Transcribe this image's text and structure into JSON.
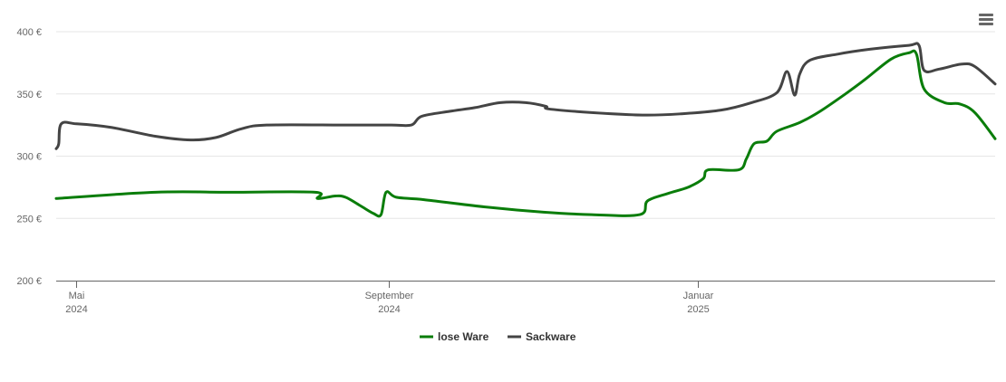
{
  "chart_data": {
    "type": "line",
    "title": "",
    "xlabel": "",
    "ylabel": "",
    "ylim": [
      200,
      400
    ],
    "y_ticks": [
      "200 €",
      "250 €",
      "300 €",
      "350 €",
      "400 €"
    ],
    "x_ticks": [
      {
        "date": "2024-05-01",
        "line1": "Mai",
        "line2": "2024"
      },
      {
        "date": "2024-09-01",
        "line1": "September",
        "line2": "2024"
      },
      {
        "date": "2025-01-01",
        "line1": "Januar",
        "line2": "2025"
      }
    ],
    "xlim": [
      "2024-04-23",
      "2025-04-28"
    ],
    "grid": true,
    "legend_position": "bottom-center",
    "series": [
      {
        "name": "lose Ware",
        "color": "#0a7d0a",
        "points": [
          [
            "2024-04-23",
            266
          ],
          [
            "2024-06-01",
            271
          ],
          [
            "2024-07-01",
            271
          ],
          [
            "2024-08-03",
            271
          ],
          [
            "2024-08-04",
            266
          ],
          [
            "2024-08-11",
            268
          ],
          [
            "2024-08-15",
            267
          ],
          [
            "2024-08-21",
            260
          ],
          [
            "2024-08-26",
            254
          ],
          [
            "2024-08-29",
            253
          ],
          [
            "2024-08-31",
            271
          ],
          [
            "2024-09-04",
            267
          ],
          [
            "2024-09-15",
            265
          ],
          [
            "2024-10-10",
            259
          ],
          [
            "2024-11-01",
            255
          ],
          [
            "2024-11-20",
            253
          ],
          [
            "2024-12-09",
            253
          ],
          [
            "2024-12-12",
            264
          ],
          [
            "2024-12-20",
            270
          ],
          [
            "2024-12-28",
            275
          ],
          [
            "2025-01-03",
            282
          ],
          [
            "2025-01-05",
            289
          ],
          [
            "2025-01-17",
            289
          ],
          [
            "2025-01-20",
            298
          ],
          [
            "2025-01-23",
            310
          ],
          [
            "2025-01-28",
            312
          ],
          [
            "2025-02-01",
            320
          ],
          [
            "2025-02-10",
            327
          ],
          [
            "2025-02-18",
            336
          ],
          [
            "2025-02-28",
            350
          ],
          [
            "2025-03-08",
            362
          ],
          [
            "2025-03-18",
            378
          ],
          [
            "2025-03-25",
            383
          ],
          [
            "2025-03-28",
            382
          ],
          [
            "2025-03-31",
            354
          ],
          [
            "2025-04-08",
            343
          ],
          [
            "2025-04-14",
            342
          ],
          [
            "2025-04-20",
            335
          ],
          [
            "2025-04-28",
            314
          ]
        ]
      },
      {
        "name": "Sackware",
        "color": "#444444",
        "points": [
          [
            "2024-04-23",
            306
          ],
          [
            "2024-04-24",
            310
          ],
          [
            "2024-04-25",
            326
          ],
          [
            "2024-05-01",
            326
          ],
          [
            "2024-05-15",
            323
          ],
          [
            "2024-06-01",
            316
          ],
          [
            "2024-06-15",
            313
          ],
          [
            "2024-06-25",
            315
          ],
          [
            "2024-07-05",
            322
          ],
          [
            "2024-07-15",
            325
          ],
          [
            "2024-08-15",
            325
          ],
          [
            "2024-09-02",
            325
          ],
          [
            "2024-09-10",
            325
          ],
          [
            "2024-09-14",
            332
          ],
          [
            "2024-09-25",
            336
          ],
          [
            "2024-10-05",
            339
          ],
          [
            "2024-10-15",
            343
          ],
          [
            "2024-10-25",
            343
          ],
          [
            "2024-11-02",
            340
          ],
          [
            "2024-11-03",
            338
          ],
          [
            "2024-11-20",
            335
          ],
          [
            "2024-12-10",
            333
          ],
          [
            "2024-12-25",
            334
          ],
          [
            "2025-01-10",
            337
          ],
          [
            "2025-01-22",
            343
          ],
          [
            "2025-02-01",
            351
          ],
          [
            "2025-02-05",
            368
          ],
          [
            "2025-02-08",
            349
          ],
          [
            "2025-02-10",
            366
          ],
          [
            "2025-02-14",
            377
          ],
          [
            "2025-02-25",
            382
          ],
          [
            "2025-03-10",
            386
          ],
          [
            "2025-03-25",
            389
          ],
          [
            "2025-03-29",
            389
          ],
          [
            "2025-03-31",
            369
          ],
          [
            "2025-04-06",
            370
          ],
          [
            "2025-04-15",
            374
          ],
          [
            "2025-04-20",
            372
          ],
          [
            "2025-04-28",
            358
          ]
        ]
      }
    ]
  },
  "toolbar": {
    "menu_icon": "hamburger-menu-icon"
  }
}
